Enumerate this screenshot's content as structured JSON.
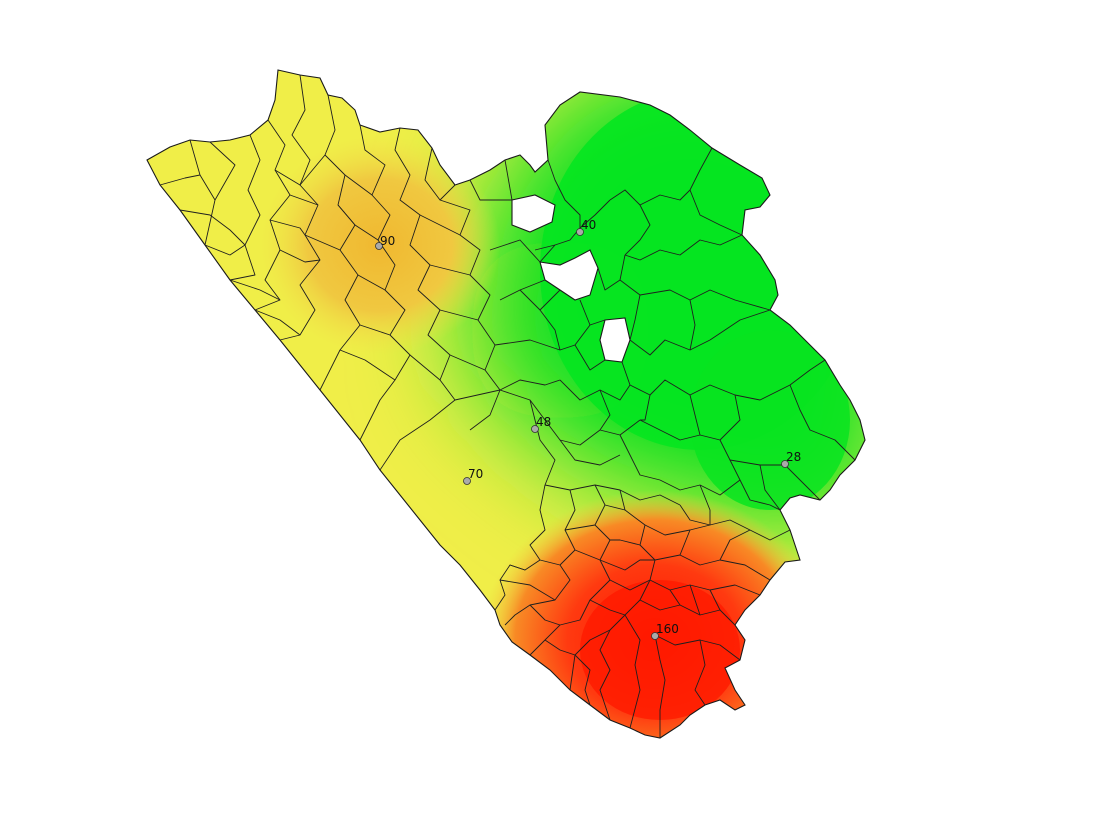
{
  "map": {
    "stations": [
      {
        "label": "90",
        "value": 90
      },
      {
        "label": "40",
        "value": 40
      },
      {
        "label": "48",
        "value": 48
      },
      {
        "label": "28",
        "value": 28
      },
      {
        "label": "70",
        "value": 70
      },
      {
        "label": "160",
        "value": 160
      }
    ],
    "colors": {
      "low": "#00e020",
      "mid": "#f0f040",
      "high": "#ff1a00",
      "outline": "#222222",
      "station_fill": "#aaaaaa"
    }
  }
}
